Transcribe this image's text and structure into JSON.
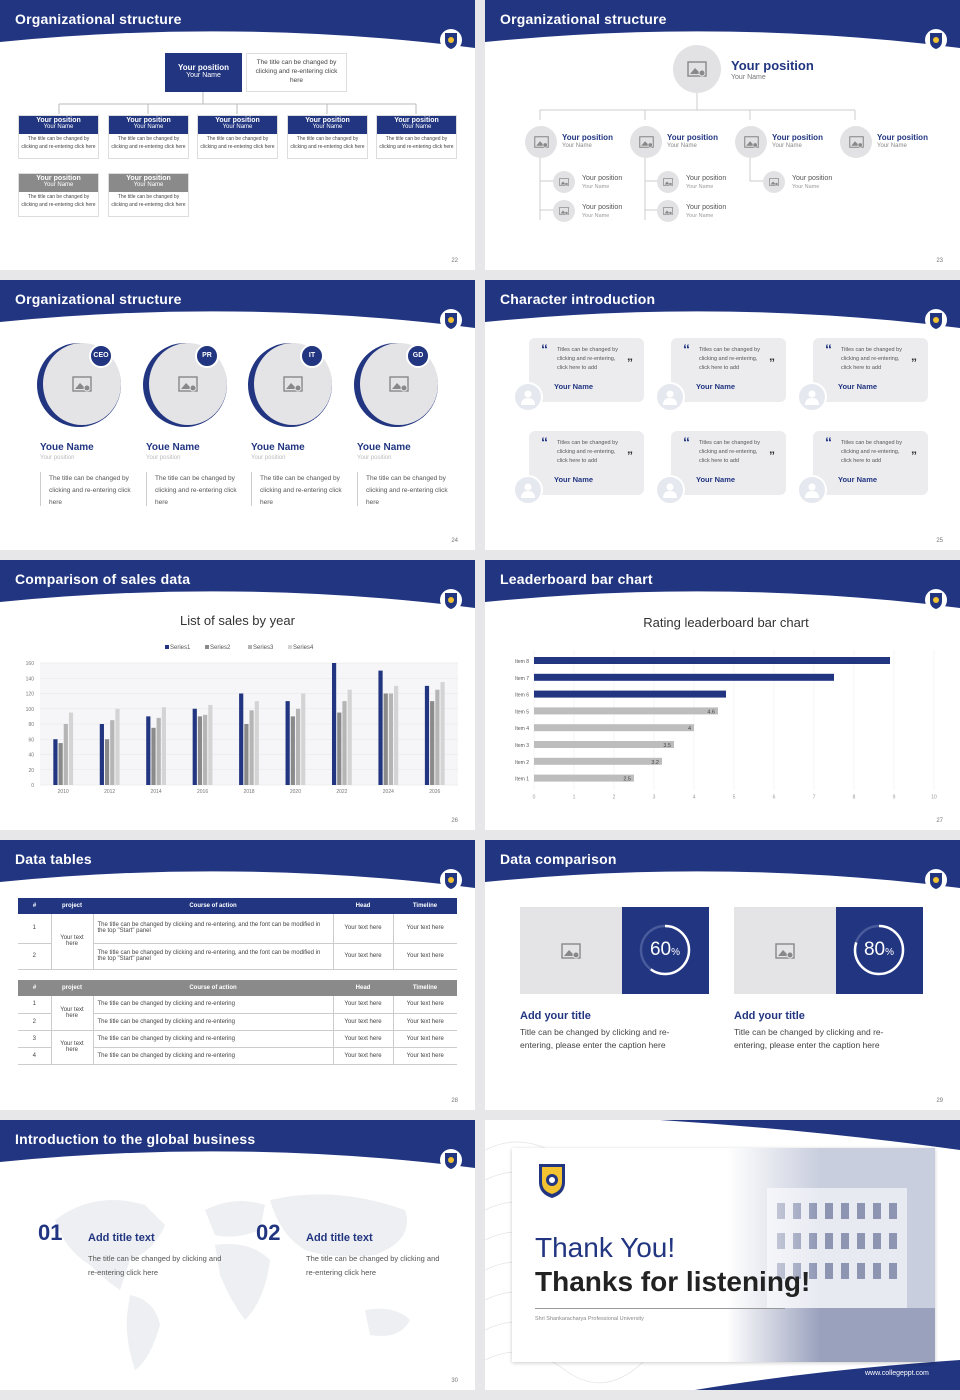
{
  "colors": {
    "navy": "#213581",
    "gray": "#8a8a8a",
    "light": "#ececef"
  },
  "s22": {
    "title": "Organizational structure",
    "page": "22",
    "top": {
      "pos": "Your position",
      "name": "Your Name",
      "desc": "The title can be changed by clicking and re-entering click here"
    },
    "row1": [
      {
        "pos": "Your position",
        "name": "Your Name",
        "desc": "The title can be changed by clicking and re-entering click here"
      },
      {
        "pos": "Your position",
        "name": "Your Name",
        "desc": "The title can be changed by clicking and re-entering click here"
      },
      {
        "pos": "Your position",
        "name": "Your Name",
        "desc": "The title can be changed by clicking and re-entering click here"
      },
      {
        "pos": "Your position",
        "name": "Your Name",
        "desc": "The title can be changed by clicking and re-entering click here"
      },
      {
        "pos": "Your position",
        "name": "Your Name",
        "desc": "The title can be changed by clicking and re-entering click here"
      }
    ],
    "row2": [
      {
        "pos": "Your position",
        "name": "Your Name",
        "desc": "The title can be changed by clicking and re-entering click here"
      },
      {
        "pos": "Your position",
        "name": "Your Name",
        "desc": "The title can be changed by clicking and re-entering click here"
      }
    ]
  },
  "s23": {
    "title": "Organizational structure",
    "page": "23",
    "top": {
      "pos": "Your position",
      "name": "Your Name"
    },
    "level1": [
      {
        "pos": "Your position",
        "name": "Your Name"
      },
      {
        "pos": "Your position",
        "name": "Your Name"
      },
      {
        "pos": "Your position",
        "name": "Your Name"
      },
      {
        "pos": "Your position",
        "name": "Your Name"
      }
    ],
    "level2": [
      {
        "pos": "Your position",
        "name": "Your Name"
      },
      {
        "pos": "Your position",
        "name": "Your Name"
      },
      {
        "pos": "Your position",
        "name": "Your Name"
      },
      {
        "pos": "Your position",
        "name": "Your Name"
      },
      {
        "pos": "Your position",
        "name": "Your Name"
      }
    ]
  },
  "s24": {
    "title": "Organizational structure",
    "page": "24",
    "people": [
      {
        "badge": "CEO",
        "name": "Youe Name",
        "pos": "Your position",
        "desc": "The title can be changed by clicking and re-entering click here"
      },
      {
        "badge": "PR",
        "name": "Youe Name",
        "pos": "Your position",
        "desc": "The title can be changed by clicking and re-entering click here"
      },
      {
        "badge": "IT",
        "name": "Youe Name",
        "pos": "Your position",
        "desc": "The title can be changed by clicking and re-entering click here"
      },
      {
        "badge": "GD",
        "name": "Youe Name",
        "pos": "Your position",
        "desc": "The title can be changed by clicking and re-entering click here"
      }
    ]
  },
  "s25": {
    "title": "Character introduction",
    "page": "25",
    "cards": [
      {
        "text": "Titles can be changed by clicking and re-entering, click here to add",
        "name": "Your Name"
      },
      {
        "text": "Titles can be changed by clicking and re-entering, click here to add",
        "name": "Your Name"
      },
      {
        "text": "Titles can be changed by clicking and re-entering, click here to add",
        "name": "Your Name"
      },
      {
        "text": "Titles can be changed by clicking and re-entering, click here to add",
        "name": "Your Name"
      },
      {
        "text": "Titles can be changed by clicking and re-entering, click here to add",
        "name": "Your Name"
      },
      {
        "text": "Titles can be changed by clicking and re-entering, click here to add",
        "name": "Your Name"
      }
    ]
  },
  "s26": {
    "title": "Comparison of sales data",
    "page": "26",
    "chart_data": {
      "type": "bar",
      "title": "List of sales by year",
      "categories": [
        "2010",
        "2012",
        "2014",
        "2016",
        "2018",
        "2020",
        "2022",
        "2024",
        "2026"
      ],
      "series": [
        {
          "name": "Series1",
          "color": "#213581",
          "values": [
            60,
            80,
            90,
            100,
            120,
            110,
            160,
            150,
            130
          ]
        },
        {
          "name": "Series2",
          "color": "#8a8a8a",
          "values": [
            55,
            60,
            75,
            90,
            80,
            90,
            95,
            120,
            110
          ]
        },
        {
          "name": "Series3",
          "color": "#b5b5b5",
          "values": [
            80,
            85,
            88,
            92,
            98,
            100,
            110,
            120,
            125
          ]
        },
        {
          "name": "Series4",
          "color": "#d4d4d4",
          "values": [
            95,
            100,
            102,
            105,
            110,
            120,
            125,
            130,
            135
          ]
        }
      ],
      "ylim": [
        0,
        160
      ],
      "yticks": [
        "0",
        "20",
        "40",
        "60",
        "80",
        "100",
        "120",
        "140",
        "160"
      ],
      "legend": "top"
    }
  },
  "s27": {
    "title": "Leaderboard bar chart",
    "page": "27",
    "chart_data": {
      "type": "bar",
      "orientation": "horizontal",
      "title": "Rating leaderboard bar chart",
      "categories": [
        "Item 8",
        "Item 7",
        "Item 6",
        "Item 5",
        "Item 4",
        "Item 3",
        "Item 2",
        "Item 1"
      ],
      "values": [
        8.9,
        7.5,
        4.8,
        4.6,
        4,
        3.5,
        3.2,
        2.5
      ],
      "labels": [
        "",
        "",
        "",
        "4.6",
        "4",
        "3.5",
        "3.2",
        "2.5"
      ],
      "highlight": [
        true,
        true,
        true,
        false,
        false,
        false,
        false,
        false
      ],
      "xlim": [
        0,
        10
      ],
      "xticks": [
        "0",
        "1",
        "2",
        "3",
        "4",
        "5",
        "6",
        "7",
        "8",
        "9",
        "10"
      ]
    }
  },
  "s28": {
    "title": "Data tables",
    "page": "28",
    "t1": {
      "headers": [
        "#",
        "project",
        "Course of action",
        "Head",
        "Timeline"
      ],
      "merged": "Your text here",
      "rows": [
        {
          "n": "1",
          "course": "The title can be changed by clicking and re-entering, and the font can be modified in the top \"Start\" panel",
          "head": "Your text here",
          "time": "Your text here"
        },
        {
          "n": "2",
          "course": "The title can be changed by clicking and re-entering, and the font can be modified in the top \"Start\" panel",
          "head": "Your text here",
          "time": "Your text here"
        }
      ]
    },
    "t2": {
      "headers": [
        "#",
        "project",
        "Course of action",
        "Head",
        "Timeline"
      ],
      "merged": [
        "Your text here",
        "Your text here"
      ],
      "rows": [
        {
          "n": "1",
          "course": "The title can be changed by clicking and re-entering",
          "head": "Your text here",
          "time": "Your text here"
        },
        {
          "n": "2",
          "course": "The title can be changed by clicking and re-entering",
          "head": "Your text here",
          "time": "Your text here"
        },
        {
          "n": "3",
          "course": "The title can be changed by clicking and re-entering",
          "head": "Your text here",
          "time": "Your text here"
        },
        {
          "n": "4",
          "course": "The title can be changed by clicking and re-entering",
          "head": "Your text here",
          "time": "Your text here"
        }
      ]
    }
  },
  "s29": {
    "title": "Data comparison",
    "page": "29",
    "items": [
      {
        "value": 60,
        "num": "60",
        "unit": "%",
        "title": "Add your title",
        "desc": "Title can be changed by clicking and re-entering, please enter the caption here"
      },
      {
        "value": 80,
        "num": "80",
        "unit": "%",
        "title": "Add your title",
        "desc": "Title can be changed by clicking and re-entering, please enter the caption here"
      }
    ]
  },
  "s30": {
    "title": "Introduction to the global business",
    "page": "30",
    "items": [
      {
        "num": "01",
        "title": "Add title text",
        "desc": "The title can be changed by clicking and re-entering click here"
      },
      {
        "num": "02",
        "title": "Add title text",
        "desc": "The title can be changed by clicking and re-entering click here"
      }
    ]
  },
  "s31": {
    "thanks": "Thank You!",
    "listening": "Thanks for listening!",
    "uni": "Shri Shankaracharya Professional University",
    "site": "www.collegeppt.com"
  }
}
